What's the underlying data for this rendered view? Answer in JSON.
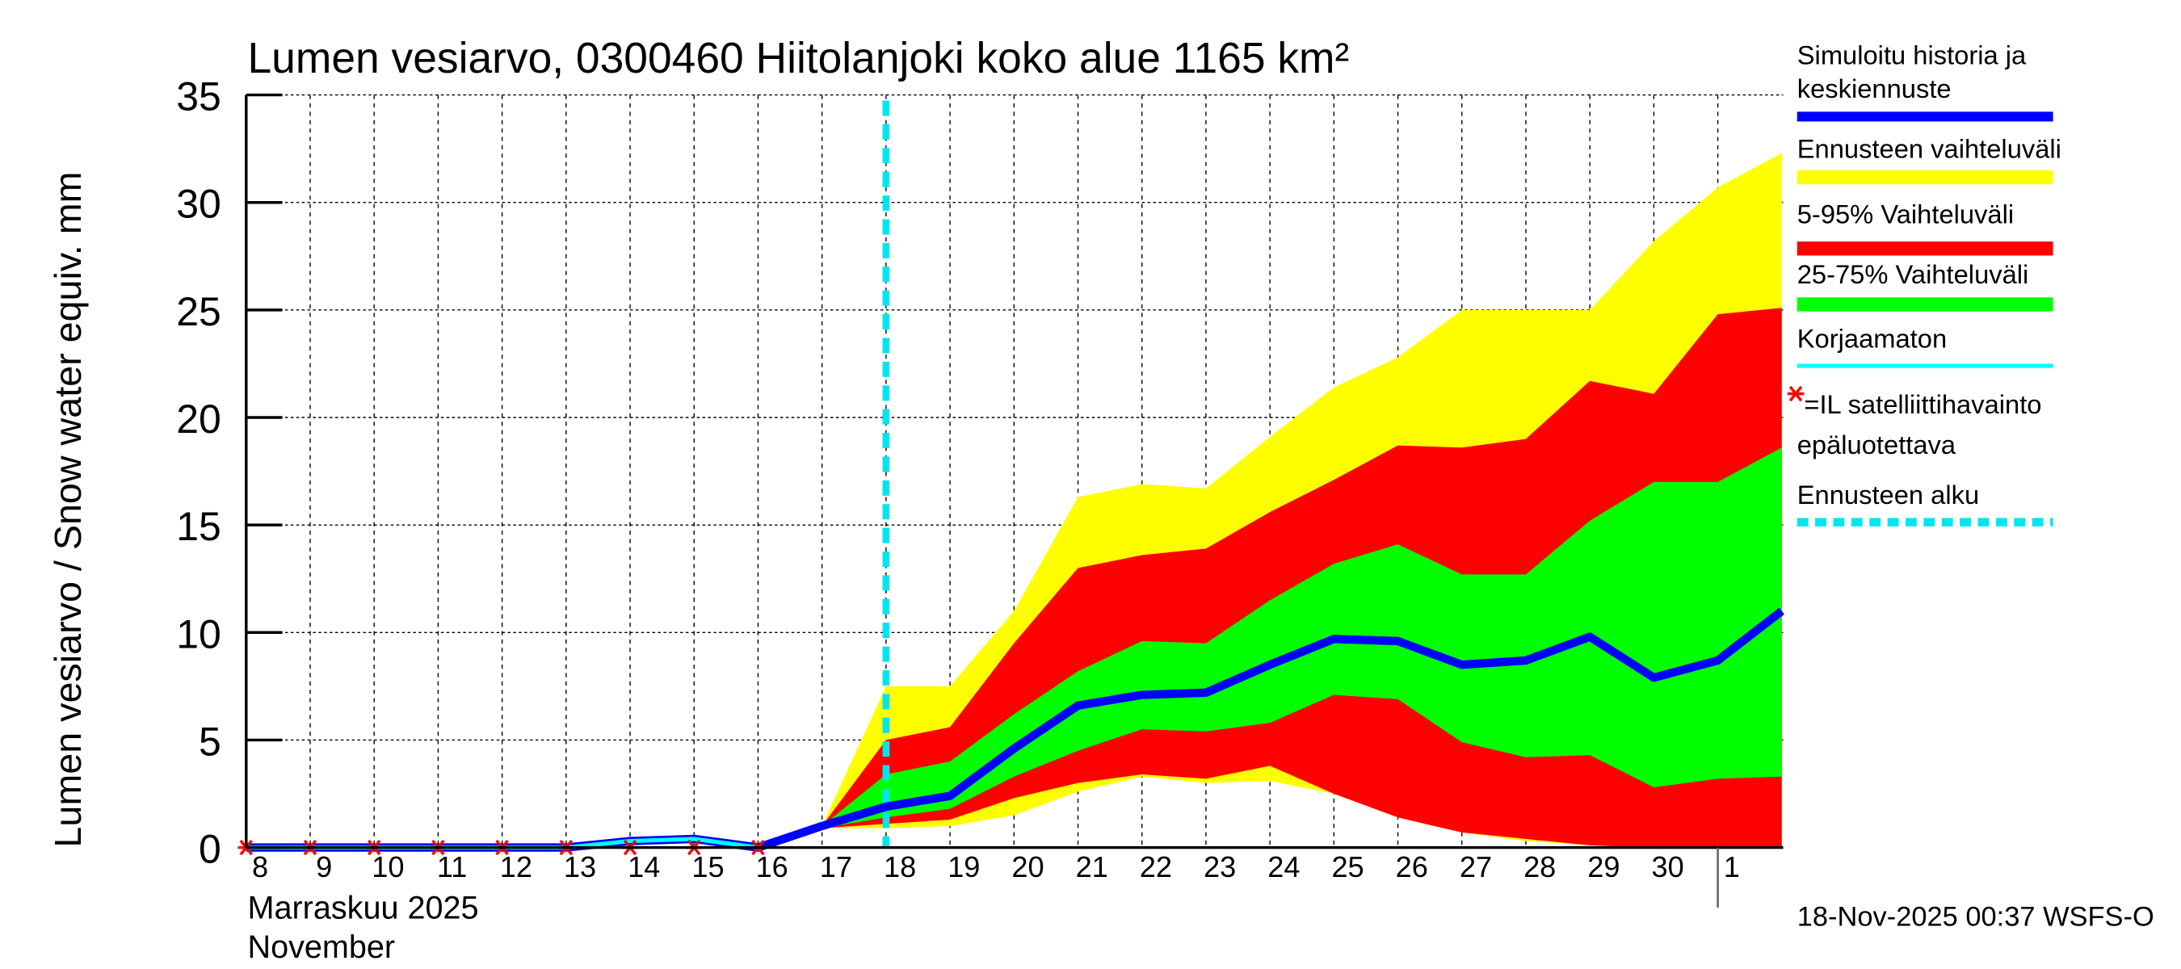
{
  "chart_data": {
    "type": "area",
    "title": "Lumen vesiarvo, 0300460 Hiitolanjoki koko alue 1165 km²",
    "ylabel": "Lumen vesiarvo / Snow water equiv.    mm",
    "xlabel_line1": "Marraskuu 2025",
    "xlabel_line2": "November",
    "timestamp": "18-Nov-2025 00:37 WSFS-O",
    "ylim": [
      0,
      35
    ],
    "yticks": [
      "0",
      "5",
      "10",
      "15",
      "20",
      "25",
      "30",
      "35"
    ],
    "ytick_values": [
      0,
      5,
      10,
      15,
      20,
      25,
      30,
      35
    ],
    "x_tick_labels": [
      "8",
      "9",
      "10",
      "11",
      "12",
      "13",
      "14",
      "15",
      "16",
      "17",
      "18",
      "19",
      "20",
      "21",
      "22",
      "23",
      "24",
      "25",
      "26",
      "27",
      "28",
      "29",
      "30",
      "1"
    ],
    "x_dates": [
      "2025-11-08",
      "2025-11-09",
      "2025-11-10",
      "2025-11-11",
      "2025-11-12",
      "2025-11-13",
      "2025-11-14",
      "2025-11-15",
      "2025-11-16",
      "2025-11-17",
      "2025-11-18",
      "2025-11-19",
      "2025-11-20",
      "2025-11-21",
      "2025-11-22",
      "2025-11-23",
      "2025-11-24",
      "2025-11-25",
      "2025-11-26",
      "2025-11-27",
      "2025-11-28",
      "2025-11-29",
      "2025-11-30",
      "2025-12-01",
      "2025-12-02"
    ],
    "forecast_start": "2025-11-18",
    "grid": true,
    "legend_placement": "right",
    "series": [
      {
        "name": "Simuloitu historia ja keskiennuste",
        "color": "#0000ff",
        "values": [
          0,
          0,
          0,
          0,
          0,
          0,
          0.3,
          0.4,
          0,
          1.0,
          1.9,
          2.4,
          4.6,
          6.6,
          7.1,
          7.2,
          8.5,
          9.7,
          9.6,
          8.5,
          8.7,
          9.8,
          7.9,
          8.7,
          11.0
        ]
      },
      {
        "name": "Korjaamaton",
        "color": "#00ffff",
        "values": [
          0,
          0,
          0,
          0,
          0,
          0,
          0.3,
          0.4,
          0
        ]
      },
      {
        "name": "Ennusteen vaihteluväli",
        "color": "#ffff00",
        "start_index": 9,
        "upper": [
          1.0,
          7.5,
          7.5,
          11.0,
          16.3,
          16.9,
          16.7,
          19.1,
          21.4,
          22.8,
          25.0,
          25.0,
          25.0,
          28.2,
          30.7,
          32.3
        ],
        "lower": [
          0.9,
          0.9,
          1.0,
          1.5,
          2.6,
          3.3,
          3.0,
          3.1,
          2.5,
          1.4,
          0.7,
          0.3,
          0.1,
          0,
          0,
          0
        ]
      },
      {
        "name": "5-95% Vaihteluväli",
        "color": "#ff0000",
        "start_index": 9,
        "upper": [
          1.0,
          5.0,
          5.6,
          9.5,
          13.0,
          13.6,
          13.9,
          15.6,
          17.1,
          18.7,
          18.6,
          19.0,
          21.7,
          21.1,
          24.8,
          25.1
        ],
        "lower": [
          0.9,
          1.1,
          1.3,
          2.3,
          3.0,
          3.4,
          3.2,
          3.8,
          2.5,
          1.4,
          0.7,
          0.4,
          0.1,
          0,
          0,
          0
        ]
      },
      {
        "name": "25-75% Vaihteluväli",
        "color": "#00ff00",
        "start_index": 9,
        "upper": [
          1.0,
          3.4,
          4.0,
          6.2,
          8.2,
          9.6,
          9.5,
          11.5,
          13.2,
          14.1,
          12.7,
          12.7,
          15.2,
          17.0,
          17.0,
          18.6
        ],
        "lower": [
          0.9,
          1.4,
          1.8,
          3.3,
          4.5,
          5.5,
          5.4,
          5.8,
          7.1,
          6.9,
          4.9,
          4.2,
          4.3,
          2.8,
          3.2,
          3.3
        ]
      },
      {
        "name": "=IL satelliittihavainto epäluotettava",
        "color": "#ff0000",
        "marker": "*",
        "values": [
          0,
          0,
          0,
          0,
          0,
          0,
          0,
          0,
          0
        ]
      }
    ]
  },
  "legend": {
    "items": [
      {
        "label_lines": [
          "Simuloitu historia ja",
          "keskiennuste"
        ],
        "color": "#0000ff"
      },
      {
        "label_lines": [
          "Ennusteen vaihteluväli"
        ],
        "color": "#ffff00"
      },
      {
        "label_lines": [
          "5-95% Vaihteluväli"
        ],
        "color": "#ff0000"
      },
      {
        "label_lines": [
          "25-75% Vaihteluväli"
        ],
        "color": "#00ff00"
      },
      {
        "label_lines": [
          "Korjaamaton"
        ],
        "color": "#00ffff"
      },
      {
        "label_lines": [
          "=IL satelliittihavainto",
          "epäluotettava"
        ],
        "color": "#ff0000"
      },
      {
        "label_lines": [
          "Ennusteen alku"
        ],
        "color": "#00e5ee"
      }
    ]
  }
}
